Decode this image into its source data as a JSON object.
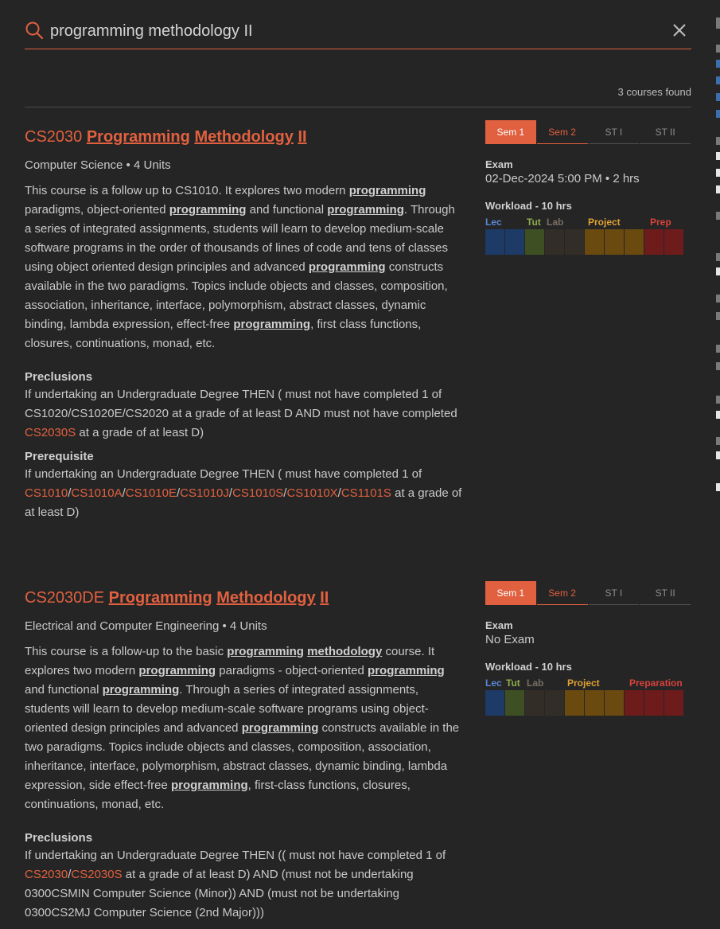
{
  "search": {
    "query": "programming methodology II",
    "placeholder": ""
  },
  "results": {
    "count_label": "3 courses found"
  },
  "course1": {
    "code": "CS2030",
    "title_parts": [
      "Programming",
      "Methodology",
      "II"
    ],
    "meta": "Computer Science • 4 Units",
    "desc": [
      {
        "t": "This course is a follow up to CS1010. It explores two modern "
      },
      {
        "t": "programming",
        "hl": true
      },
      {
        "t": " paradigms, object-oriented "
      },
      {
        "t": "programming",
        "hl": true
      },
      {
        "t": " and functional "
      },
      {
        "t": "programming",
        "hl": true
      },
      {
        "t": ". Through a series of integrated assignments, students will learn to develop medium-scale software programs in the order of thousands of lines of code and tens of classes using object oriented design principles and advanced "
      },
      {
        "t": "programming",
        "hl": true
      },
      {
        "t": " constructs available in the two paradigms. Topics include objects and classes, composition, association, inheritance, interface, polymorphism, abstract classes, dynamic binding, lambda expression, effect-free "
      },
      {
        "t": "programming",
        "hl": true
      },
      {
        "t": ", first class functions, closures, continuations, monad, etc."
      }
    ],
    "preclusions_title": "Preclusions",
    "preclusions": [
      {
        "t": "If undertaking an Undergraduate Degree THEN ( must not have completed 1 of CS1020/CS1020E/CS2020 at a grade of at least D AND must not have completed "
      },
      {
        "t": "CS2030S",
        "code": true
      },
      {
        "t": " at a grade of at least D)"
      }
    ],
    "prereq_title": "Prerequisite",
    "prereq": [
      {
        "t": "If undertaking an Undergraduate Degree THEN ( must have completed 1 of "
      },
      {
        "t": "CS1010",
        "code": true
      },
      {
        "t": "/"
      },
      {
        "t": "CS1010A",
        "code": true
      },
      {
        "t": "/"
      },
      {
        "t": "CS1010E",
        "code": true
      },
      {
        "t": "/"
      },
      {
        "t": "CS1010J",
        "code": true
      },
      {
        "t": "/"
      },
      {
        "t": "CS1010S",
        "code": true
      },
      {
        "t": "/"
      },
      {
        "t": "CS1010X",
        "code": true
      },
      {
        "t": "/"
      },
      {
        "t": "CS1101S",
        "code": true
      },
      {
        "t": " at a grade of at least D)"
      }
    ],
    "sem_tabs": [
      "Sem 1",
      "Sem 2",
      "ST I",
      "ST II"
    ],
    "exam_label": "Exam",
    "exam_value": "02-Dec-2024 5:00 PM • 2 hrs",
    "workload_label": "Workload - 10 hrs",
    "workload_legend": [
      "Lec",
      "Tut",
      "Lab",
      "Project",
      "Prep"
    ]
  },
  "course2": {
    "code": "CS2030DE",
    "title_parts": [
      "Programming",
      "Methodology",
      "II"
    ],
    "meta": "Electrical and Computer Engineering • 4 Units",
    "desc": [
      {
        "t": "This course is a follow-up to the basic "
      },
      {
        "t": "programming",
        "hl": true
      },
      {
        "t": " "
      },
      {
        "t": "methodology",
        "hl": true
      },
      {
        "t": " course. It explores two modern "
      },
      {
        "t": "programming",
        "hl": true
      },
      {
        "t": " paradigms - object-oriented "
      },
      {
        "t": "programming",
        "hl": true
      },
      {
        "t": " and functional "
      },
      {
        "t": "programming",
        "hl": true
      },
      {
        "t": ". Through a series of integrated assignments, students will learn to develop medium-scale software programs using object-oriented design principles and advanced "
      },
      {
        "t": "programming",
        "hl": true
      },
      {
        "t": " constructs available in the two paradigms. Topics include objects and classes, composition, association, inheritance, interface, polymorphism, abstract classes, dynamic binding, lambda expression, side effect-free "
      },
      {
        "t": "programming",
        "hl": true
      },
      {
        "t": ", first-class functions, closures, continuations, monad, etc."
      }
    ],
    "preclusions_title": "Preclusions",
    "preclusions": [
      {
        "t": "If undertaking an Undergraduate Degree THEN (( must not have completed 1 of "
      },
      {
        "t": "CS2030",
        "code": true
      },
      {
        "t": "/"
      },
      {
        "t": "CS2030S",
        "code": true
      },
      {
        "t": " at a grade of at least D) AND (must not be undertaking 0300CSMIN Computer Science (Minor)) AND (must not be undertaking 0300CS2MJ Computer Science (2nd Major)))"
      }
    ],
    "sem_tabs": [
      "Sem 1",
      "Sem 2",
      "ST I",
      "ST II"
    ],
    "exam_label": "Exam",
    "exam_value": "No Exam",
    "workload_label": "Workload - 10 hrs",
    "workload_legend": [
      "Lec",
      "Tut",
      "Lab",
      "Project",
      "Preparation"
    ]
  },
  "colors": {
    "accent": "#e1603f",
    "lecture": "#1e3a66",
    "tutorial": "#3e5023",
    "lab": "#332d28",
    "project": "#6b4a10",
    "preparation": "#6e1b1b"
  },
  "icons": {
    "search": "search-icon",
    "close": "close-icon"
  }
}
